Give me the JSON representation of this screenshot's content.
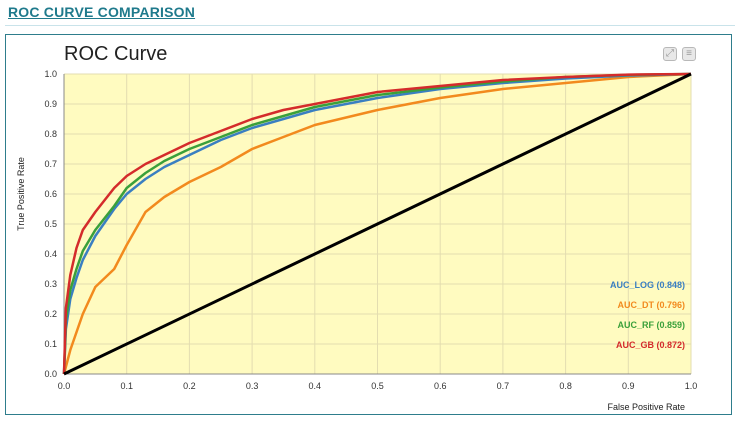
{
  "header": {
    "title": "ROC CURVE COMPARISON"
  },
  "toolbar": {
    "zoom_icon": "expand-icon",
    "menu_icon": "menu-icon"
  },
  "chart_data": {
    "type": "line",
    "title": "ROC Curve",
    "xlabel": "False Positive Rate",
    "ylabel": "True Positive Rate",
    "xlim": [
      0,
      1
    ],
    "ylim": [
      0,
      1
    ],
    "x_ticks": [
      "0.0",
      "0.1",
      "0.2",
      "0.3",
      "0.4",
      "0.5",
      "0.6",
      "0.7",
      "0.8",
      "0.9",
      "1.0"
    ],
    "y_ticks": [
      "0.0",
      "0.1",
      "0.2",
      "0.3",
      "0.4",
      "0.5",
      "0.6",
      "0.7",
      "0.8",
      "0.9",
      "1.0"
    ],
    "grid": true,
    "plot_background": "#fffbc0",
    "legend_position": "bottom-right",
    "series": [
      {
        "name": "AUC_LOG (0.848)",
        "color": "#3a7fc1",
        "x": [
          0,
          0.003,
          0.01,
          0.02,
          0.03,
          0.05,
          0.08,
          0.1,
          0.13,
          0.16,
          0.2,
          0.25,
          0.3,
          0.35,
          0.4,
          0.5,
          0.6,
          0.7,
          0.8,
          0.9,
          1.0
        ],
        "y": [
          0,
          0.15,
          0.25,
          0.32,
          0.38,
          0.46,
          0.55,
          0.6,
          0.65,
          0.69,
          0.73,
          0.78,
          0.82,
          0.85,
          0.88,
          0.92,
          0.95,
          0.97,
          0.985,
          0.995,
          1.0
        ]
      },
      {
        "name": "AUC_DT (0.796)",
        "color": "#f28a1e",
        "x": [
          0,
          0.01,
          0.03,
          0.05,
          0.08,
          0.1,
          0.13,
          0.16,
          0.2,
          0.25,
          0.3,
          0.35,
          0.4,
          0.5,
          0.6,
          0.7,
          0.8,
          0.9,
          1.0
        ],
        "y": [
          0,
          0.08,
          0.2,
          0.29,
          0.35,
          0.43,
          0.54,
          0.59,
          0.64,
          0.69,
          0.75,
          0.79,
          0.83,
          0.88,
          0.92,
          0.95,
          0.97,
          0.99,
          1.0
        ]
      },
      {
        "name": "AUC_RF (0.859)",
        "color": "#3aa03a",
        "x": [
          0,
          0.003,
          0.01,
          0.02,
          0.03,
          0.05,
          0.08,
          0.1,
          0.13,
          0.16,
          0.2,
          0.25,
          0.3,
          0.35,
          0.4,
          0.5,
          0.6,
          0.7,
          0.8,
          0.9,
          1.0
        ],
        "y": [
          0,
          0.18,
          0.28,
          0.35,
          0.41,
          0.48,
          0.56,
          0.62,
          0.67,
          0.71,
          0.75,
          0.79,
          0.83,
          0.86,
          0.89,
          0.93,
          0.955,
          0.975,
          0.99,
          0.997,
          1.0
        ]
      },
      {
        "name": "AUC_GB (0.872)",
        "color": "#d42b2b",
        "x": [
          0,
          0.003,
          0.01,
          0.02,
          0.03,
          0.05,
          0.08,
          0.1,
          0.13,
          0.16,
          0.2,
          0.25,
          0.3,
          0.35,
          0.4,
          0.5,
          0.6,
          0.7,
          0.8,
          0.9,
          1.0
        ],
        "y": [
          0,
          0.22,
          0.33,
          0.42,
          0.48,
          0.54,
          0.62,
          0.66,
          0.7,
          0.73,
          0.77,
          0.81,
          0.85,
          0.88,
          0.9,
          0.94,
          0.96,
          0.98,
          0.99,
          0.998,
          1.0
        ]
      },
      {
        "name": "",
        "color": "#000000",
        "x": [
          0,
          1
        ],
        "y": [
          0,
          1
        ]
      }
    ]
  }
}
